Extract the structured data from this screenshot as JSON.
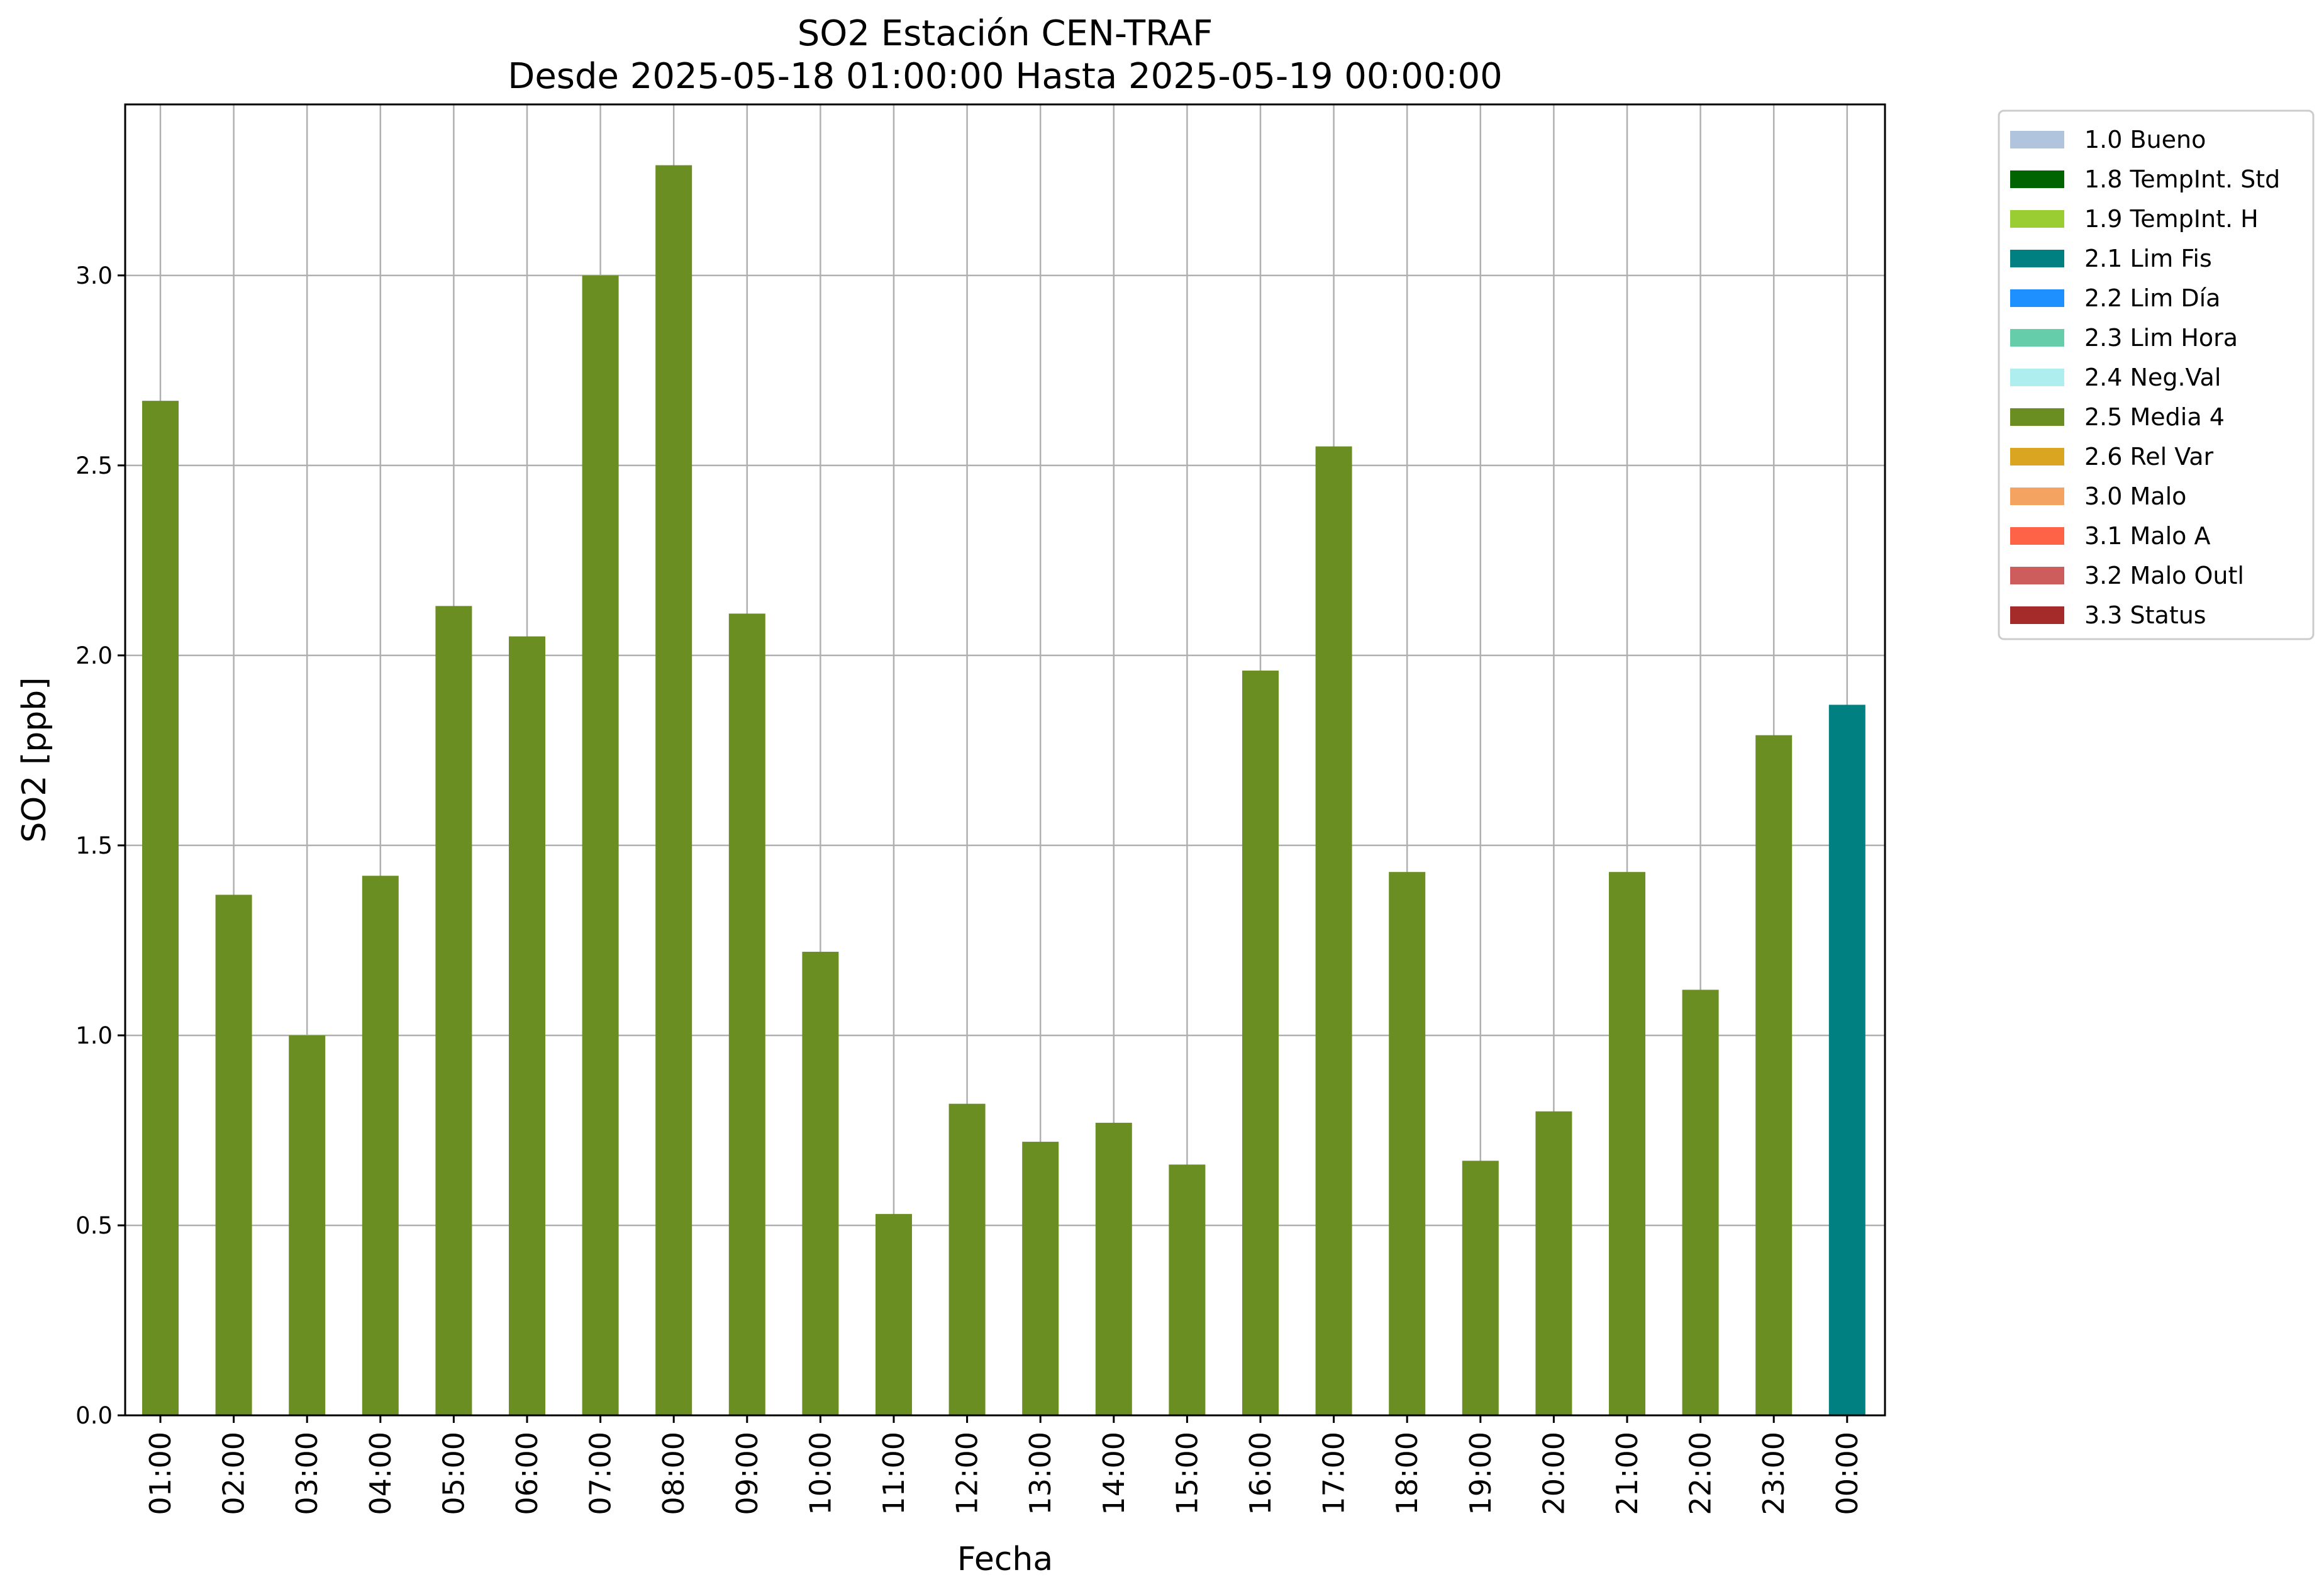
{
  "chart_data": {
    "type": "bar",
    "title": "SO2 Estación CEN-TRAF",
    "subtitle": "Desde 2025-05-18 01:00:00 Hasta 2025-05-19 00:00:00",
    "xlabel": "Fecha",
    "ylabel": "SO2 [ppb]",
    "ylim": [
      0,
      3.45
    ],
    "yticks": [
      "0.0",
      "0.5",
      "1.0",
      "1.5",
      "2.0",
      "2.5",
      "3.0"
    ],
    "grid": true,
    "legend_position": "outside-top-right",
    "categories": [
      "01:00",
      "02:00",
      "03:00",
      "04:00",
      "05:00",
      "06:00",
      "07:00",
      "08:00",
      "09:00",
      "10:00",
      "11:00",
      "12:00",
      "13:00",
      "14:00",
      "15:00",
      "16:00",
      "17:00",
      "18:00",
      "19:00",
      "20:00",
      "21:00",
      "22:00",
      "23:00",
      "00:00"
    ],
    "values": [
      2.67,
      1.37,
      1.0,
      1.42,
      2.13,
      2.05,
      3.0,
      3.29,
      2.11,
      1.22,
      0.53,
      0.82,
      0.72,
      0.77,
      0.66,
      1.96,
      2.55,
      1.43,
      0.67,
      0.8,
      1.43,
      1.12,
      1.79,
      1.87
    ],
    "flags": [
      "2.5",
      "2.5",
      "2.5",
      "2.5",
      "2.5",
      "2.5",
      "2.5",
      "2.5",
      "2.5",
      "2.5",
      "2.5",
      "2.5",
      "2.5",
      "2.5",
      "2.5",
      "2.5",
      "2.5",
      "2.5",
      "2.5",
      "2.5",
      "2.5",
      "2.5",
      "2.5",
      "2.1"
    ],
    "legend": [
      {
        "code": "1.0",
        "label": "1.0 Bueno",
        "color": "#b0c4de"
      },
      {
        "code": "1.8",
        "label": "1.8 TempInt. Std",
        "color": "#006400"
      },
      {
        "code": "1.9",
        "label": "1.9 TempInt. H",
        "color": "#9acd32"
      },
      {
        "code": "2.1",
        "label": "2.1 Lim Fis",
        "color": "#008080"
      },
      {
        "code": "2.2",
        "label": "2.2 Lim Día",
        "color": "#1e90ff"
      },
      {
        "code": "2.3",
        "label": "2.3 Lim Hora",
        "color": "#66cdaa"
      },
      {
        "code": "2.4",
        "label": "2.4 Neg.Val",
        "color": "#afeeee"
      },
      {
        "code": "2.5",
        "label": "2.5 Media 4",
        "color": "#6b8e23"
      },
      {
        "code": "2.6",
        "label": "2.6 Rel Var",
        "color": "#daa520"
      },
      {
        "code": "3.0",
        "label": "3.0 Malo",
        "color": "#f4a460"
      },
      {
        "code": "3.1",
        "label": "3.1 Malo A",
        "color": "#ff6347"
      },
      {
        "code": "3.2",
        "label": "3.2 Malo Outl",
        "color": "#cd5c5c"
      },
      {
        "code": "3.3",
        "label": "3.3 Status",
        "color": "#a52a2a"
      }
    ]
  }
}
